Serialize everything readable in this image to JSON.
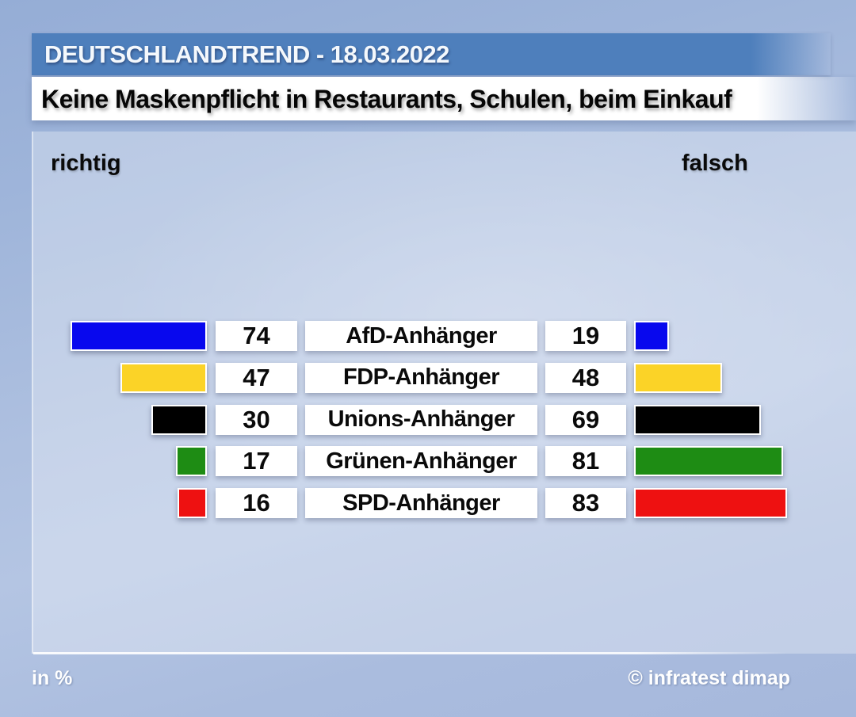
{
  "header": {
    "banner": "DEUTSCHLANDTREND - 18.03.2022",
    "title": "Keine Maskenpflicht in Restaurants, Schulen, beim Einkauf"
  },
  "chart_data": {
    "type": "bar",
    "orientation": "diverging-horizontal",
    "unit": "%",
    "left_label": "richtig",
    "right_label": "falsch",
    "categories": [
      "AfD-Anhänger",
      "FDP-Anhänger",
      "Unions-Anhänger",
      "Grünen-Anhänger",
      "SPD-Anhänger"
    ],
    "series": [
      {
        "name": "richtig",
        "side": "left",
        "values": [
          74,
          47,
          30,
          17,
          16
        ]
      },
      {
        "name": "falsch",
        "side": "right",
        "values": [
          19,
          48,
          69,
          81,
          83
        ]
      }
    ],
    "bar_colors": [
      "#0808ee",
      "#fbd327",
      "#000000",
      "#1e8c14",
      "#ee1111"
    ],
    "value_range": [
      0,
      100
    ],
    "legend_position": "none",
    "grid": false
  },
  "footer": {
    "unit_note": "in %",
    "copyright": "© infratest dimap"
  },
  "colors": {
    "banner_bg": "#4e7fbc",
    "banner_text": "#f4f8fc",
    "title_bg": "#ffffff",
    "title_text": "#060606",
    "page_bg_top": "#95add6",
    "page_bg_bottom": "#a6b8dc",
    "panel_overlay": "rgba(255,255,255,0.30)",
    "footer_text": "#ffffff"
  }
}
